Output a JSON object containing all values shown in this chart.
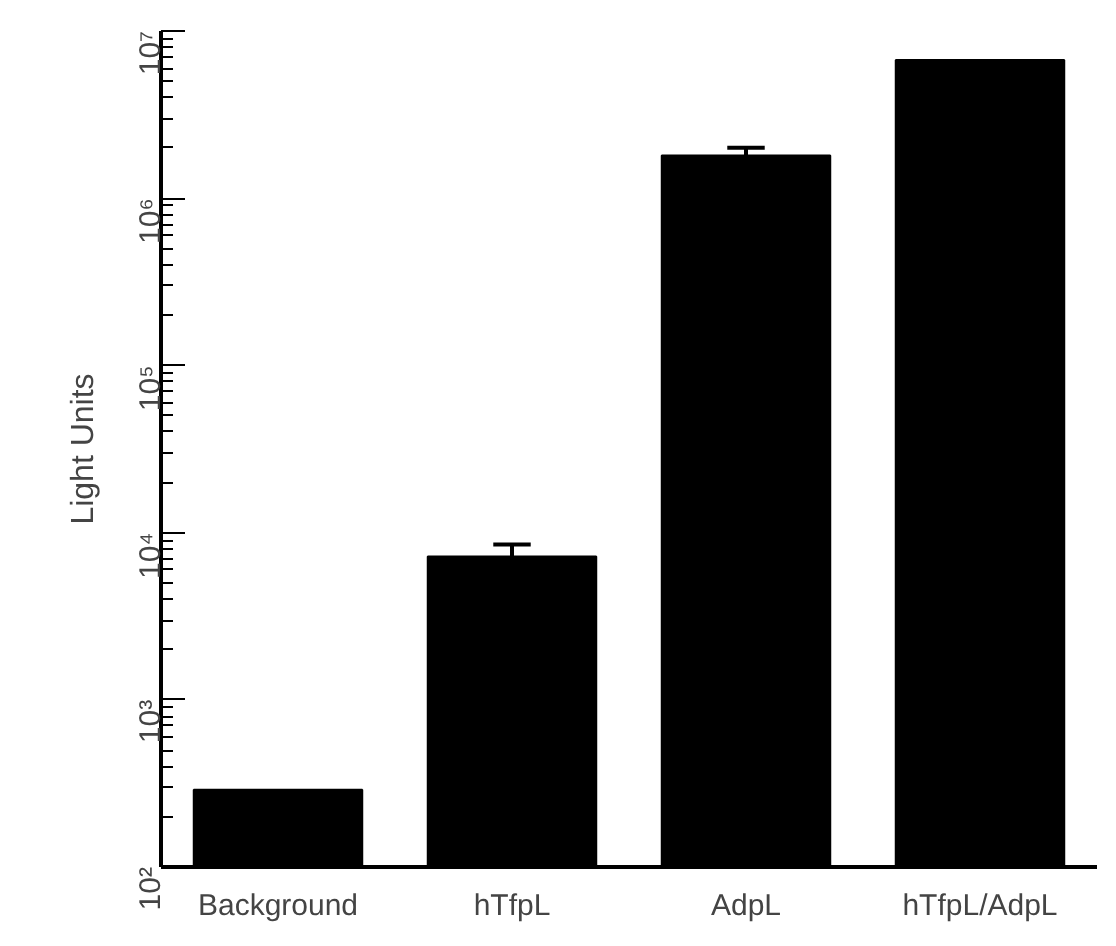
{
  "chart_data": {
    "type": "bar",
    "ylabel": "Light Units",
    "categories": [
      "Background",
      "hTfpL",
      "AdpL",
      "hTfpL/AdpL"
    ],
    "values": [
      290,
      7200,
      1800000,
      6700000
    ],
    "errors": [
      null,
      1300,
      200000,
      null
    ],
    "color": "#000000",
    "log": true,
    "grid": false,
    "ylim": [
      100,
      10000000
    ],
    "yticks": [
      {
        "value": 100,
        "label": "10²"
      },
      {
        "value": 1000,
        "label": "10³"
      },
      {
        "value": 10000,
        "label": "10⁴"
      },
      {
        "value": 100000,
        "label": "10⁵"
      },
      {
        "value": 1000000,
        "label": "10⁶"
      },
      {
        "value": 10000000,
        "label": "10⁷"
      }
    ]
  }
}
